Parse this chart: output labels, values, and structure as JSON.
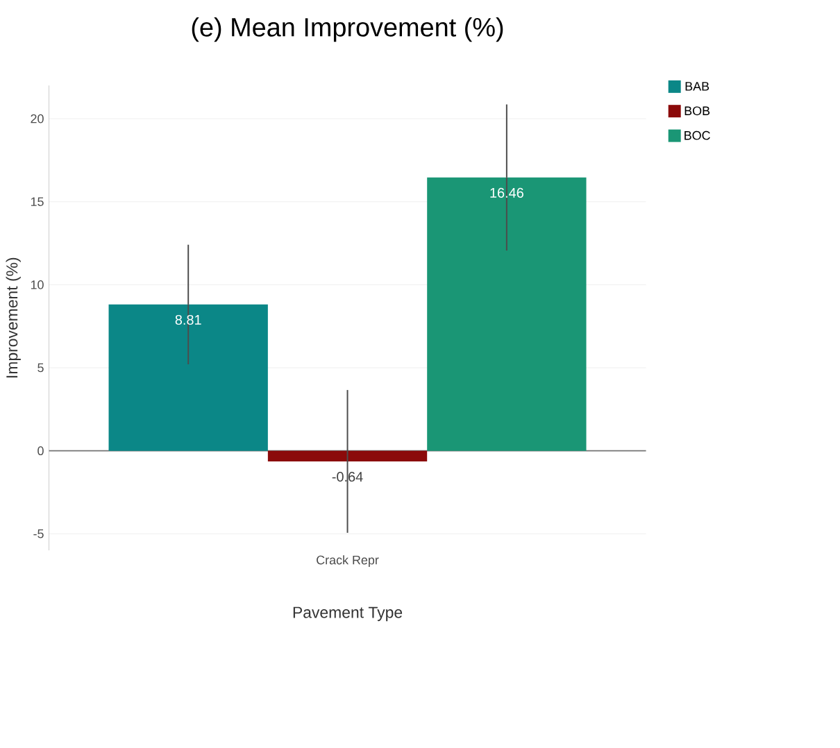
{
  "chart_data": {
    "type": "bar",
    "title": "(e)   Mean Improvement (%)",
    "xlabel": "Pavement Type",
    "ylabel": "Improvement (%)",
    "categories": [
      "Crack Repr"
    ],
    "series": [
      {
        "name": "BAB",
        "color": "#0b8787",
        "values": [
          8.81
        ],
        "errors": [
          3.6
        ]
      },
      {
        "name": "BOB",
        "color": "#8b0a0a",
        "values": [
          -0.64
        ],
        "errors": [
          4.3
        ]
      },
      {
        "name": "BOC",
        "color": "#1a9675",
        "values": [
          16.46
        ],
        "errors": [
          4.4
        ]
      }
    ],
    "ylim": [
      -6,
      22
    ],
    "yticks": [
      -5,
      0,
      5,
      10,
      15,
      20
    ],
    "grid": "y",
    "legend": "top right",
    "data_labels": true
  }
}
